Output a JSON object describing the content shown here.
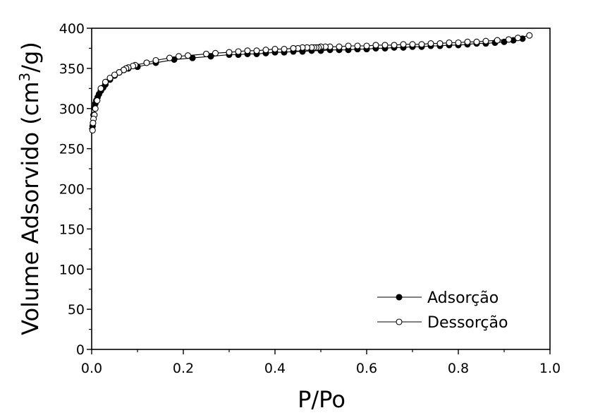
{
  "chart_data": {
    "type": "line",
    "title": "",
    "xlabel": "P/Po",
    "ylabel": {
      "main": "Volume Adsorvido (cm",
      "sup": "3",
      "tail": "/g)"
    },
    "xlim": [
      0.0,
      1.0
    ],
    "ylim": [
      0,
      400
    ],
    "xticks": [
      "0.0",
      "0.2",
      "0.4",
      "0.6",
      "0.8",
      "1.0"
    ],
    "yticks": [
      "0",
      "50",
      "100",
      "150",
      "200",
      "250",
      "300",
      "350",
      "400"
    ],
    "grid": false,
    "legend_position": "bottom-right",
    "series": [
      {
        "name": "Adsorção",
        "marker": "filled-circle",
        "color": "#000000",
        "x": [
          0.002,
          0.004,
          0.006,
          0.008,
          0.01,
          0.013,
          0.016,
          0.02,
          0.025,
          0.03,
          0.04,
          0.05,
          0.06,
          0.07,
          0.08,
          0.1,
          0.14,
          0.18,
          0.22,
          0.26,
          0.3,
          0.32,
          0.34,
          0.36,
          0.38,
          0.4,
          0.42,
          0.44,
          0.46,
          0.48,
          0.5,
          0.52,
          0.54,
          0.56,
          0.58,
          0.6,
          0.62,
          0.64,
          0.66,
          0.68,
          0.7,
          0.72,
          0.74,
          0.76,
          0.78,
          0.8,
          0.82,
          0.84,
          0.86,
          0.88,
          0.9,
          0.92,
          0.94
        ],
        "y": [
          278,
          292,
          301,
          306,
          310,
          314,
          318,
          322,
          326,
          330,
          336,
          341,
          345,
          348,
          350,
          352,
          357,
          361,
          363,
          365,
          367,
          367,
          368,
          368,
          369,
          370,
          370,
          371,
          371,
          372,
          372,
          373,
          373,
          373,
          374,
          374,
          375,
          375,
          376,
          376,
          377,
          377,
          378,
          378,
          379,
          379,
          380,
          381,
          381,
          382,
          383,
          385,
          387
        ]
      },
      {
        "name": "Dessorção",
        "marker": "open-circle",
        "color": "#000000",
        "x": [
          0.955,
          0.93,
          0.91,
          0.885,
          0.86,
          0.84,
          0.82,
          0.8,
          0.78,
          0.76,
          0.74,
          0.72,
          0.7,
          0.68,
          0.66,
          0.64,
          0.62,
          0.6,
          0.58,
          0.56,
          0.54,
          0.52,
          0.51,
          0.5,
          0.495,
          0.49,
          0.485,
          0.48,
          0.47,
          0.46,
          0.45,
          0.44,
          0.42,
          0.4,
          0.38,
          0.36,
          0.34,
          0.32,
          0.3,
          0.27,
          0.25,
          0.21,
          0.19,
          0.17,
          0.14,
          0.12,
          0.095,
          0.09,
          0.08,
          0.075,
          0.07,
          0.06,
          0.05,
          0.04,
          0.03,
          0.02,
          0.012,
          0.008,
          0.006,
          0.004,
          0.003,
          0.002
        ],
        "y": [
          391,
          388,
          386,
          385,
          384,
          383,
          383,
          382,
          382,
          381,
          381,
          380,
          380,
          380,
          379,
          379,
          379,
          378,
          378,
          378,
          377,
          377,
          377,
          377,
          376,
          376,
          376,
          376,
          376,
          376,
          375,
          375,
          374,
          374,
          373,
          372,
          372,
          371,
          370,
          369,
          368,
          366,
          365,
          363,
          360,
          357,
          354,
          353,
          351,
          350,
          348,
          345,
          342,
          338,
          333,
          325,
          310,
          300,
          292,
          287,
          282,
          273
        ]
      }
    ]
  }
}
